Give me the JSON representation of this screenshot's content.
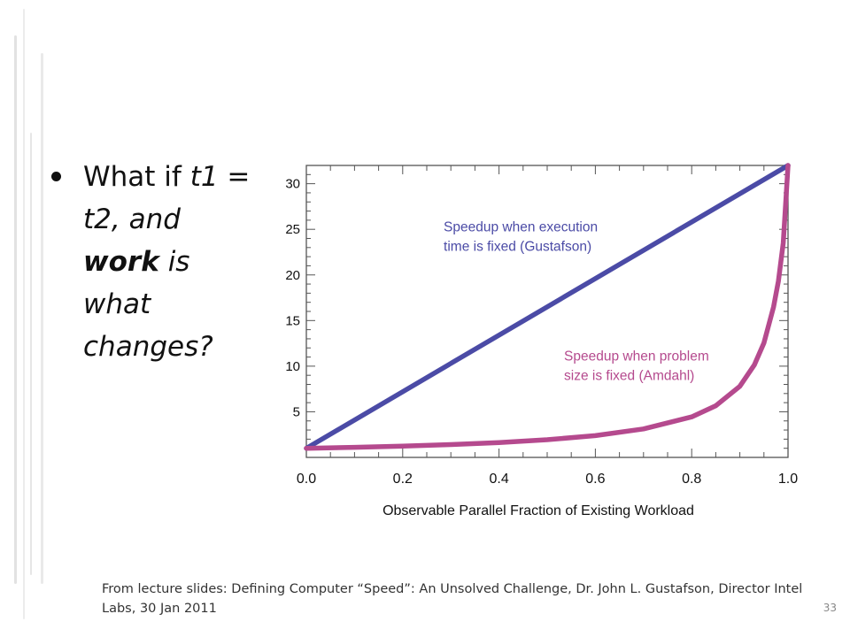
{
  "slide": {
    "bullet": {
      "p1": "What if ",
      "t1": "t1",
      "p2": " = t2, and ",
      "work": "work",
      "p3": " is what changes?"
    },
    "caption": "From lecture slides: Defining Computer “Speed”: An Unsolved Challenge, Dr. John L. Gustafson, Director Intel Labs, 30 Jan 2011",
    "page_number": "33"
  },
  "chart_data": {
    "type": "line",
    "title": "",
    "xlabel": "Observable Parallel Fraction of Existing Workload",
    "ylabel": "",
    "xlim": [
      0.0,
      1.0
    ],
    "ylim": [
      0,
      32
    ],
    "x_ticks": [
      "0.0",
      "0.2",
      "0.4",
      "0.6",
      "0.8",
      "1.0"
    ],
    "y_ticks": [
      "5",
      "10",
      "15",
      "20",
      "25",
      "30"
    ],
    "grid": false,
    "series": [
      {
        "name": "Speedup when execution time is fixed (Gustafson)",
        "label_lines": [
          "Speedup when execution",
          "time is fixed (Gustafson)"
        ],
        "color": "#4b4ba6",
        "x": [
          0.0,
          1.0
        ],
        "y": [
          1,
          32
        ]
      },
      {
        "name": "Speedup when problem size is fixed (Amdahl)",
        "label_lines": [
          "Speedup when problem",
          "size is fixed (Amdahl)"
        ],
        "color": "#b54a8e",
        "x": [
          0.0,
          0.1,
          0.2,
          0.3,
          0.4,
          0.5,
          0.6,
          0.7,
          0.8,
          0.85,
          0.9,
          0.93,
          0.95,
          0.97,
          0.98,
          0.99,
          1.0
        ],
        "y": [
          1.0,
          1.11,
          1.24,
          1.41,
          1.63,
          1.94,
          2.39,
          3.12,
          4.44,
          5.66,
          7.8,
          10.12,
          12.55,
          16.5,
          19.3,
          23.5,
          32.0
        ]
      }
    ]
  }
}
